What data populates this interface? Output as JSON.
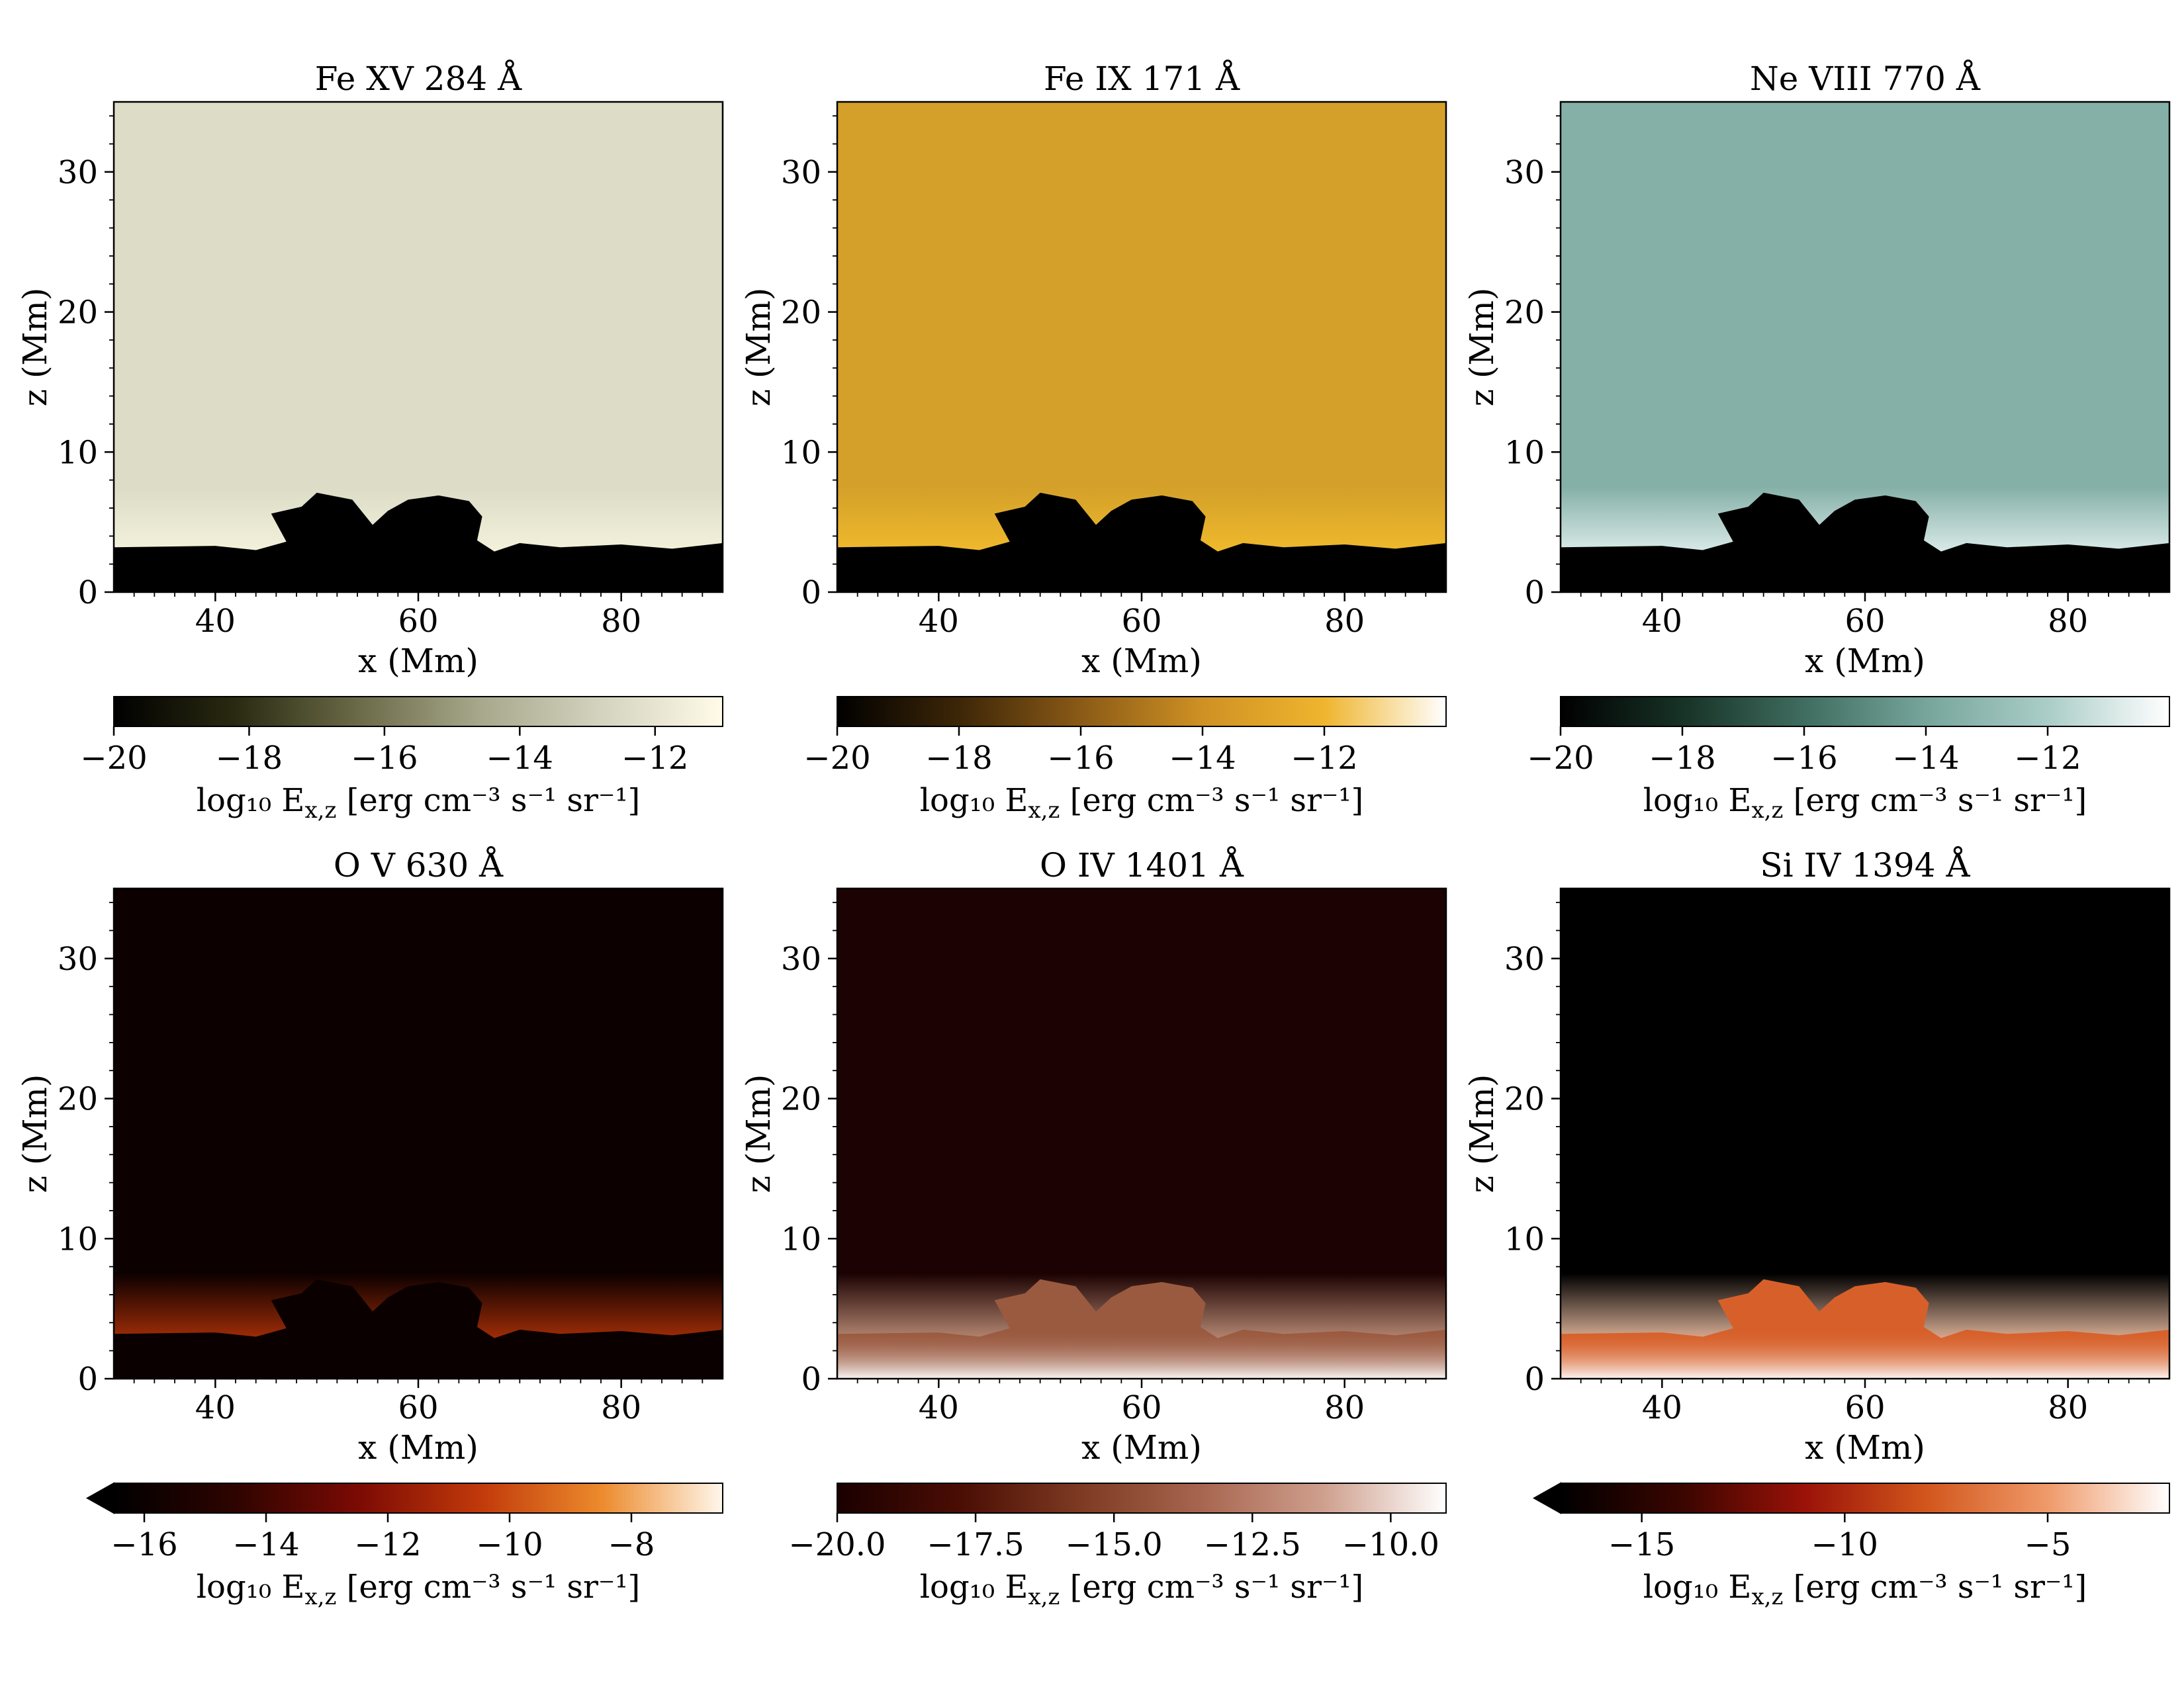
{
  "figure": {
    "background": "#ffffff"
  },
  "chart_data": [
    {
      "type": "heatmap",
      "title": "Fe XV 284 Å",
      "xlabel": "x (Mm)",
      "ylabel": "z (Mm)",
      "xlim": [
        30,
        90
      ],
      "ylim": [
        0,
        35
      ],
      "xticks": [
        40,
        60,
        80
      ],
      "yticks": [
        0,
        10,
        20,
        30
      ],
      "xtick_labels": [
        "40",
        "60",
        "80"
      ],
      "ytick_labels": [
        "0",
        "10",
        "20",
        "30"
      ],
      "upper_color": "#dcdcc7",
      "lower_edge_color": "#f6f4dd",
      "colorbar": {
        "label_main": "log₁₀ E",
        "label_sub": "x,z",
        "label_tail": "[erg cm⁻³ s⁻¹ sr⁻¹]",
        "range": [
          -20,
          -11
        ],
        "ticks": [
          -20,
          -18,
          -16,
          -14,
          -12
        ],
        "tick_labels": [
          "−20",
          "−18",
          "−16",
          "−14",
          "−12"
        ],
        "extend_min": false,
        "colors": [
          "#000000",
          "#2a2a12",
          "#6a6a48",
          "#a7a78b",
          "#d3d3bf",
          "#fffbe8"
        ]
      }
    },
    {
      "type": "heatmap",
      "title": "Fe IX 171 Å",
      "xlabel": "x (Mm)",
      "ylabel": "z (Mm)",
      "xlim": [
        30,
        90
      ],
      "ylim": [
        0,
        35
      ],
      "xticks": [
        40,
        60,
        80
      ],
      "yticks": [
        0,
        10,
        20,
        30
      ],
      "xtick_labels": [
        "40",
        "60",
        "80"
      ],
      "ytick_labels": [
        "0",
        "10",
        "20",
        "30"
      ],
      "upper_color": "#d4a02a",
      "lower_edge_color": "#f2bd2c",
      "colorbar": {
        "label_main": "log₁₀ E",
        "label_sub": "x,z",
        "label_tail": "[erg cm⁻³ s⁻¹ sr⁻¹]",
        "range": [
          -20,
          -10
        ],
        "ticks": [
          -20,
          -18,
          -16,
          -14,
          -12
        ],
        "tick_labels": [
          "−20",
          "−18",
          "−16",
          "−14",
          "−12"
        ],
        "extend_min": false,
        "colors": [
          "#000000",
          "#3d2608",
          "#8a5a16",
          "#cf9124",
          "#efb52e",
          "#ffffff"
        ]
      }
    },
    {
      "type": "heatmap",
      "title": "Ne VIII 770 Å",
      "xlabel": "x (Mm)",
      "ylabel": "z (Mm)",
      "xlim": [
        30,
        90
      ],
      "ylim": [
        0,
        35
      ],
      "xticks": [
        40,
        60,
        80
      ],
      "yticks": [
        0,
        10,
        20,
        30
      ],
      "xtick_labels": [
        "40",
        "60",
        "80"
      ],
      "ytick_labels": [
        "0",
        "10",
        "20",
        "30"
      ],
      "upper_color": "#85b0a8",
      "lower_edge_color": "#e4f1ef",
      "colorbar": {
        "label_main": "log₁₀ E",
        "label_sub": "x,z",
        "label_tail": "[erg cm⁻³ s⁻¹ sr⁻¹]",
        "range": [
          -20,
          -10
        ],
        "ticks": [
          -20,
          -18,
          -16,
          -14,
          -12
        ],
        "tick_labels": [
          "−20",
          "−18",
          "−16",
          "−14",
          "−12"
        ],
        "extend_min": false,
        "colors": [
          "#000000",
          "#173227",
          "#3f6d5f",
          "#76a59c",
          "#aacdc7",
          "#ffffff"
        ]
      }
    },
    {
      "type": "heatmap",
      "title": "O V 630 Å",
      "xlabel": "x (Mm)",
      "ylabel": "z (Mm)",
      "xlim": [
        30,
        90
      ],
      "ylim": [
        0,
        35
      ],
      "xticks": [
        40,
        60,
        80
      ],
      "yticks": [
        0,
        10,
        20,
        30
      ],
      "xtick_labels": [
        "40",
        "60",
        "80"
      ],
      "ytick_labels": [
        "0",
        "10",
        "20",
        "30"
      ],
      "upper_color": "#0c0000",
      "lower_edge_color": "#b33208",
      "colorbar": {
        "label_main": "log₁₀ E",
        "label_sub": "x,z",
        "label_tail": "[erg cm⁻³ s⁻¹ sr⁻¹]",
        "range": [
          -16.5,
          -6.5
        ],
        "ticks": [
          -16,
          -14,
          -12,
          -10,
          -8
        ],
        "tick_labels": [
          "−16",
          "−14",
          "−12",
          "−10",
          "−8"
        ],
        "extend_min": true,
        "colors": [
          "#000000",
          "#2e0400",
          "#7b0a04",
          "#c0390a",
          "#ec8a2c",
          "#fff7ec"
        ]
      }
    },
    {
      "type": "heatmap",
      "title": "O IV 1401 Å",
      "xlabel": "x (Mm)",
      "ylabel": "z (Mm)",
      "xlim": [
        30,
        90
      ],
      "ylim": [
        0,
        35
      ],
      "xticks": [
        40,
        60,
        80
      ],
      "yticks": [
        0,
        10,
        20,
        30
      ],
      "xtick_labels": [
        "40",
        "60",
        "80"
      ],
      "ytick_labels": [
        "0",
        "10",
        "20",
        "30"
      ],
      "upper_color": "#1c0202",
      "lower_edge_color": "#c89880",
      "colorbar": {
        "label_main": "log₁₀ E",
        "label_sub": "x,z",
        "label_tail": "[erg cm⁻³ s⁻¹ sr⁻¹]",
        "range": [
          -20,
          -9
        ],
        "ticks": [
          -20,
          -17.5,
          -15,
          -12.5,
          -10
        ],
        "tick_labels": [
          "−20.0",
          "−17.5",
          "−15.0",
          "−12.5",
          "−10.0"
        ],
        "extend_min": false,
        "colors": [
          "#1a0000",
          "#4a0d04",
          "#7e3a22",
          "#a86650",
          "#cfa08e",
          "#ffffff"
        ]
      }
    },
    {
      "type": "heatmap",
      "title": "Si IV 1394 Å",
      "xlabel": "x (Mm)",
      "ylabel": "z (Mm)",
      "xlim": [
        30,
        90
      ],
      "ylim": [
        0,
        35
      ],
      "xticks": [
        40,
        60,
        80
      ],
      "yticks": [
        0,
        10,
        20,
        30
      ],
      "xtick_labels": [
        "40",
        "60",
        "80"
      ],
      "ytick_labels": [
        "0",
        "10",
        "20",
        "30"
      ],
      "upper_color": "#000000",
      "lower_edge_color": "#f4c4a8",
      "colorbar": {
        "label_main": "log₁₀ E",
        "label_sub": "x,z",
        "label_tail": "[erg cm⁻³ s⁻¹ sr⁻¹]",
        "range": [
          -17,
          -2
        ],
        "ticks": [
          -15,
          -10,
          -5
        ],
        "tick_labels": [
          "−15",
          "−10",
          "−5"
        ],
        "extend_min": true,
        "colors": [
          "#000000",
          "#3a0500",
          "#9a1208",
          "#d2561c",
          "#ef9a6a",
          "#ffffff"
        ]
      }
    }
  ]
}
